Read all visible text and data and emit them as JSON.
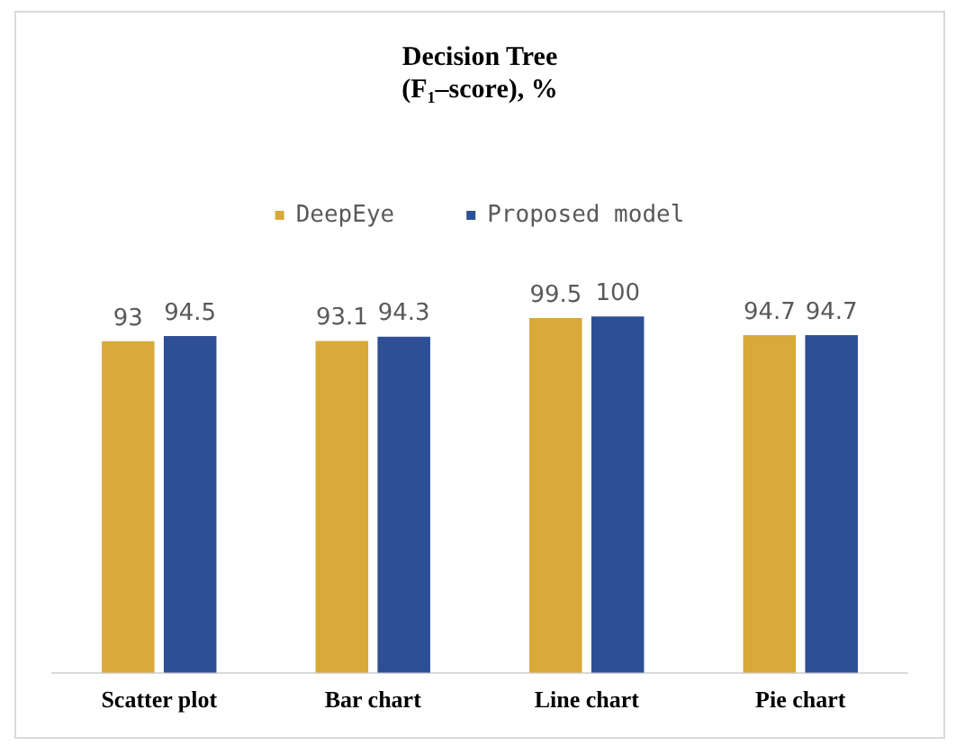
{
  "chart_data": {
    "type": "bar",
    "title": [
      "Decision Tree",
      "(F₁–score), %"
    ],
    "categories": [
      "Scatter plot",
      "Bar chart",
      "Line chart",
      "Pie chart"
    ],
    "series": [
      {
        "name": "DeepEye",
        "color": "#d9a93a",
        "values": [
          93,
          93.1,
          99.5,
          94.7
        ]
      },
      {
        "name": "Proposed model",
        "color": "#2e4f96",
        "values": [
          94.5,
          94.3,
          100,
          94.7
        ]
      }
    ],
    "tick_labels": "x",
    "data_labels": true,
    "legend": "top",
    "grid": false
  }
}
